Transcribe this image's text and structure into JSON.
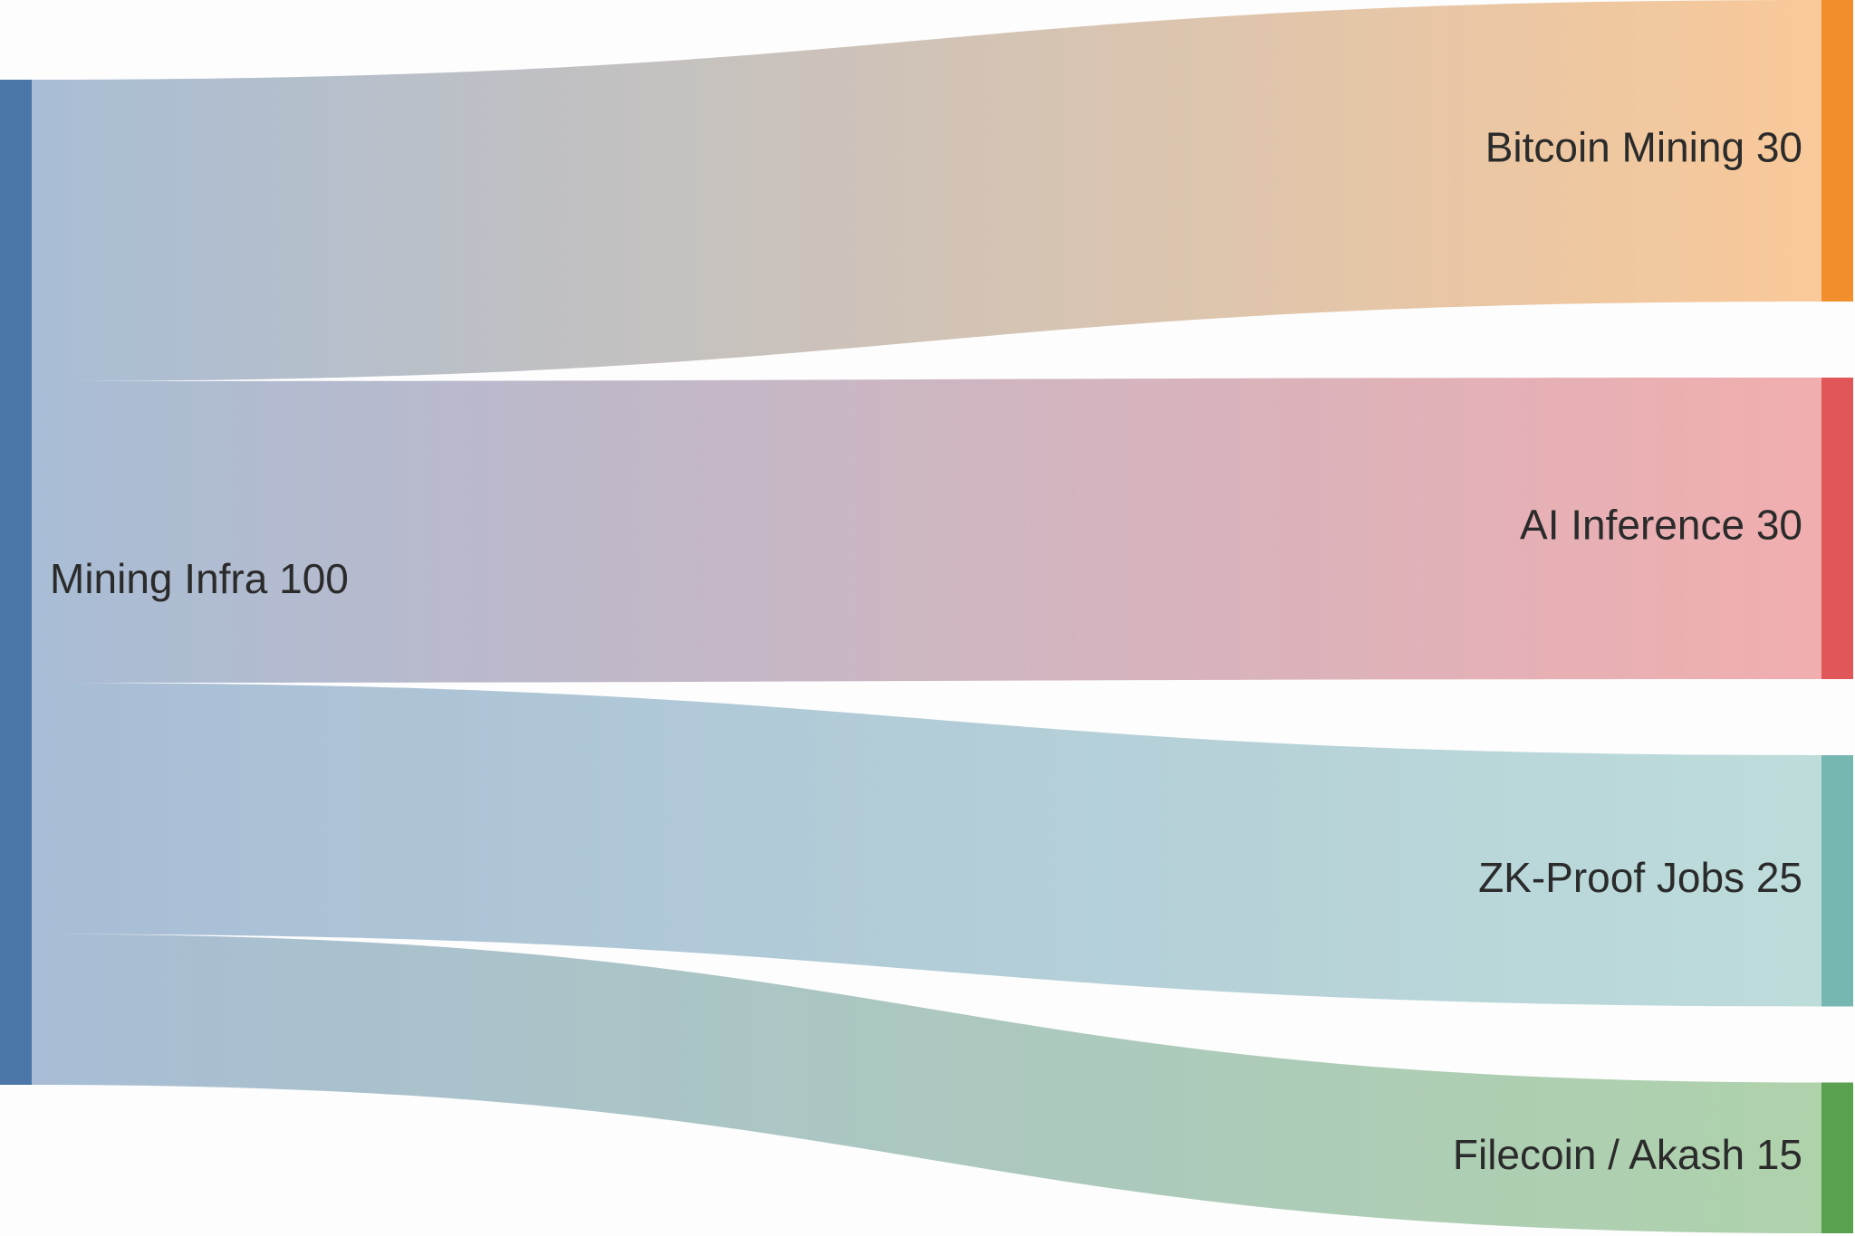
{
  "chart_data": {
    "type": "sankey",
    "source": {
      "id": "infra",
      "name": "Mining Infra",
      "value": 100,
      "color": "#4a76a8",
      "label": "Mining Infra 100"
    },
    "targets": [
      {
        "id": "btc",
        "name": "Bitcoin Mining",
        "value": 30,
        "color": "#f28e2b",
        "label": "Bitcoin Mining 30"
      },
      {
        "id": "ai",
        "name": "AI Inference",
        "value": 30,
        "color": "#e15759",
        "label": "AI Inference 30"
      },
      {
        "id": "zk",
        "name": "ZK-Proof Jobs",
        "value": 25,
        "color": "#76b7b2",
        "label": "ZK-Proof Jobs 25"
      },
      {
        "id": "filecoin",
        "name": "Filecoin / Akash",
        "value": 15,
        "color": "#59a14f",
        "label": "Filecoin / Akash 15"
      }
    ],
    "links": [
      {
        "source": "infra",
        "target": "btc",
        "value": 30
      },
      {
        "source": "infra",
        "target": "ai",
        "value": 30
      },
      {
        "source": "infra",
        "target": "zk",
        "value": 25
      },
      {
        "source": "infra",
        "target": "filecoin",
        "value": 15
      }
    ]
  }
}
